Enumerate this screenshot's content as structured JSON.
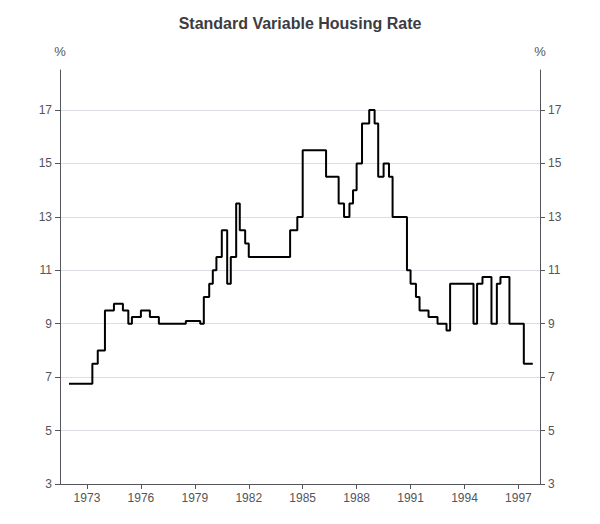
{
  "chart_data": {
    "type": "line",
    "title": "Standard Variable Housing Rate",
    "ylabel": "%",
    "y2label": "%",
    "x": [
      1972.0,
      1973.3,
      1973.3,
      1973.6,
      1973.6,
      1974.0,
      1974.0,
      1974.5,
      1974.5,
      1975.0,
      1975.0,
      1975.3,
      1975.3,
      1975.5,
      1975.5,
      1976.0,
      1976.0,
      1976.5,
      1976.5,
      1977.0,
      1977.0,
      1978.5,
      1978.5,
      1979.3,
      1979.3,
      1979.5,
      1979.5,
      1979.8,
      1979.8,
      1980.0,
      1980.0,
      1980.2,
      1980.2,
      1980.5,
      1980.5,
      1980.8,
      1980.8,
      1981.0,
      1981.0,
      1981.3,
      1981.3,
      1981.5,
      1981.5,
      1981.8,
      1981.8,
      1982.0,
      1982.0,
      1982.3,
      1982.3,
      1983.0,
      1983.0,
      1984.3,
      1984.3,
      1984.7,
      1984.7,
      1985.0,
      1985.0,
      1985.5,
      1985.5,
      1986.0,
      1986.0,
      1986.3,
      1986.3,
      1987.0,
      1987.0,
      1987.3,
      1987.3,
      1987.6,
      1987.6,
      1987.8,
      1987.8,
      1988.0,
      1988.0,
      1988.3,
      1988.3,
      1988.7,
      1988.7,
      1989.0,
      1989.0,
      1989.2,
      1989.2,
      1989.5,
      1989.5,
      1989.8,
      1989.8,
      1990.0,
      1990.0,
      1990.3,
      1990.3,
      1990.5,
      1990.5,
      1990.8,
      1990.8,
      1991.0,
      1991.0,
      1991.3,
      1991.3,
      1991.5,
      1991.5,
      1992.0,
      1992.0,
      1992.5,
      1992.5,
      1993.0,
      1993.0,
      1993.2,
      1993.2,
      1993.5,
      1993.5,
      1994.5,
      1994.5,
      1994.7,
      1994.7,
      1995.0,
      1995.0,
      1995.5,
      1995.5,
      1995.8,
      1995.8,
      1996.0,
      1996.0,
      1996.5,
      1996.5,
      1997.0,
      1997.0,
      1997.3,
      1997.3,
      1997.8
    ],
    "values": [
      6.75,
      6.75,
      7.5,
      7.5,
      8.0,
      8.0,
      9.5,
      9.5,
      9.75,
      9.75,
      9.5,
      9.5,
      9.0,
      9.0,
      9.25,
      9.25,
      9.5,
      9.5,
      9.25,
      9.25,
      9.0,
      9.0,
      9.1,
      9.1,
      9.0,
      9.0,
      10.0,
      10.0,
      10.5,
      10.5,
      11.0,
      11.0,
      11.5,
      11.5,
      12.5,
      12.5,
      10.5,
      10.5,
      11.5,
      11.5,
      13.5,
      13.5,
      12.5,
      12.5,
      12.0,
      12.0,
      11.5,
      11.5,
      11.5,
      11.5,
      11.5,
      11.5,
      12.5,
      12.5,
      13.0,
      13.0,
      15.5,
      15.5,
      15.5,
      15.5,
      15.5,
      15.5,
      14.5,
      14.5,
      13.5,
      13.5,
      13.0,
      13.0,
      13.5,
      13.5,
      14.0,
      14.0,
      15.0,
      15.0,
      16.5,
      16.5,
      17.0,
      17.0,
      16.5,
      16.5,
      14.5,
      14.5,
      15.0,
      15.0,
      14.5,
      14.5,
      13.0,
      13.0,
      13.0,
      13.0,
      13.0,
      13.0,
      11.0,
      11.0,
      10.5,
      10.5,
      10.0,
      10.0,
      9.5,
      9.5,
      9.25,
      9.25,
      9.0,
      9.0,
      8.75,
      8.75,
      10.5,
      10.5,
      10.5,
      10.5,
      9.0,
      9.0,
      10.5,
      10.5,
      10.75,
      10.75,
      9.0,
      9.0,
      10.5,
      10.5,
      10.75,
      10.75,
      9.0,
      9.0,
      9.0,
      9.0,
      7.5,
      7.5
    ],
    "color": "black",
    "xlim": [
      1971.5,
      1998.2
    ],
    "xticks": [
      1973,
      1976,
      1979,
      1982,
      1985,
      1988,
      1991,
      1994,
      1997
    ],
    "ylim": [
      3,
      18.5
    ],
    "yticks": [
      3,
      5,
      7,
      9,
      11,
      13,
      15,
      17
    ],
    "y2lim": [
      3,
      18.5
    ],
    "y2ticks": [
      3,
      5,
      7,
      9,
      11,
      13,
      15,
      17
    ],
    "grid": true
  }
}
